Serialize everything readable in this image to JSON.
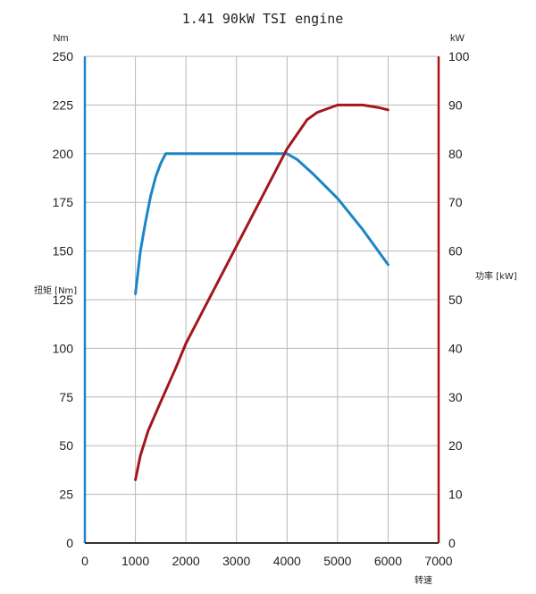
{
  "chart_data": {
    "type": "line",
    "title": "1.41 90kW TSI engine",
    "xlabel": "转速",
    "x_ticks": [
      "0",
      "1000",
      "2000",
      "3000",
      "4000",
      "5000",
      "6000",
      "7000"
    ],
    "xlim": [
      0,
      7000
    ],
    "left_axis": {
      "unit": "Nm",
      "label": "扭矩 [Nm]",
      "ylim": [
        0,
        250
      ],
      "ticks": [
        "0",
        "25",
        "50",
        "75",
        "100",
        "125",
        "150",
        "175",
        "200",
        "225",
        "250"
      ],
      "color": "#1b86c6"
    },
    "right_axis": {
      "unit": "kW",
      "label": "功率 [kW]",
      "ylim": [
        0,
        100
      ],
      "ticks": [
        "0",
        "10",
        "20",
        "30",
        "40",
        "50",
        "60",
        "70",
        "80",
        "90",
        "100"
      ],
      "color": "#a3171c"
    },
    "grid": true,
    "series": [
      {
        "axis": "left",
        "color": "#1b86c6",
        "x": [
          1000,
          1100,
          1200,
          1300,
          1400,
          1500,
          1600,
          2000,
          3000,
          3900,
          4000,
          4200,
          4500,
          5000,
          5500,
          6000
        ],
        "y": [
          128,
          150,
          165,
          178,
          188,
          195,
          200,
          200,
          200,
          200,
          200,
          197,
          190,
          177,
          161,
          143
        ]
      },
      {
        "axis": "right",
        "color": "#a3171c",
        "x": [
          1000,
          1100,
          1250,
          1500,
          1800,
          2000,
          2500,
          3000,
          3500,
          4000,
          4200,
          4400,
          4600,
          5000,
          5500,
          5800,
          6000
        ],
        "y": [
          13,
          18,
          23,
          29,
          36,
          41,
          51,
          61,
          71,
          81,
          84,
          87,
          88.5,
          90,
          90,
          89.5,
          89
        ]
      }
    ]
  }
}
